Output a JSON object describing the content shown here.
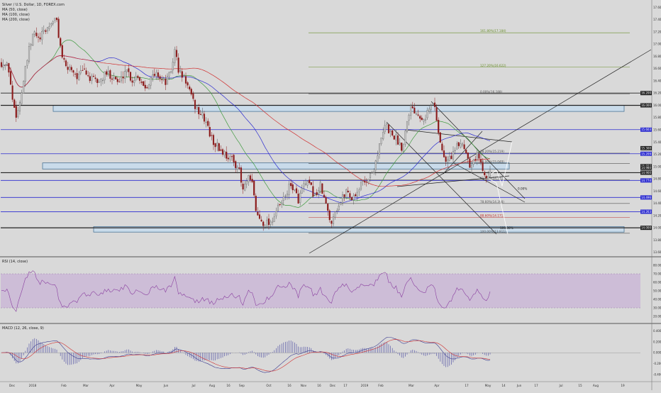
{
  "header": {
    "title": "Silver / U.S. Dollar, 1D, FOREX.com",
    "ma_labels": [
      "MA (50, close)",
      "MA (100, close)",
      "MA (200, close)"
    ]
  },
  "panes": {
    "rsi_label": "RSI (14, close)",
    "macd_label": "MACD (12, 26, close, 9)"
  },
  "colors": {
    "background": "#d9d9d9",
    "up_candle": "#c8c8c8",
    "down_candle": "#8b1a1a",
    "ma50": "#3f9a3f",
    "ma100": "#2b2bd0",
    "ma200": "#d03030",
    "rsi_band": "#c9b5d6",
    "rsi_line": "#8a3fa0",
    "macd_hist": "#5a5aa8",
    "macd_signal": "#d03030",
    "zone_fill": "#c8dcec",
    "zone_stroke": "#3d6b8f"
  },
  "chart_data": {
    "type": "candlestick",
    "title": "Silver / U.S. Dollar, 1D, FOREX.com",
    "x_tick_labels": [
      "Dec",
      "2018",
      "Feb",
      "Mar",
      "Apr",
      "May",
      "Jun",
      "Jul",
      "Aug",
      "16",
      "Sep",
      "Oct",
      "16",
      "Nov",
      "16",
      "Dec",
      "17",
      "2019",
      "Feb",
      "Mar",
      "Apr",
      "17",
      "May",
      "14",
      "Jun",
      "17",
      "Jul",
      "15",
      "Aug",
      "19"
    ],
    "y_ticks": [
      "17.600",
      "17.400",
      "17.200",
      "17.000",
      "16.800",
      "16.600",
      "16.400",
      "16.200",
      "16.000",
      "15.800",
      "15.600",
      "15.400",
      "15.200",
      "15.000",
      "14.800",
      "14.600",
      "14.400",
      "14.200",
      "14.000",
      "13.800",
      "13.600"
    ],
    "ylim": [
      13.55,
      17.65
    ],
    "price_badges": [
      {
        "label": "16.200",
        "value": 16.2,
        "color": "#222222"
      },
      {
        "label": "16.000",
        "value": 16.0,
        "color": "#222222"
      },
      {
        "label": "15.603",
        "value": 15.603,
        "color": "#2b2bd0"
      },
      {
        "label": "15.300",
        "value": 15.3,
        "color": "#222222"
      },
      {
        "label": "15.209",
        "value": 15.209,
        "color": "#2b2bd0"
      },
      {
        "label": "15.007",
        "value": 15.007,
        "color": "#222222"
      },
      {
        "label": "14.980",
        "value": 14.98,
        "color": "#222222"
      },
      {
        "label": "14.900",
        "value": 14.9,
        "color": "#222222"
      },
      {
        "label": "14.774",
        "value": 14.774,
        "color": "#2b2bd0"
      },
      {
        "label": "14.496",
        "value": 14.496,
        "color": "#2b2bd0"
      },
      {
        "label": "14.263",
        "value": 14.263,
        "color": "#2b2bd0"
      },
      {
        "label": "14.000",
        "value": 14.0,
        "color": "#222222"
      }
    ],
    "horizontal_lines": [
      {
        "value": 16.2,
        "color": "#222222",
        "width": 0.8
      },
      {
        "value": 16.0,
        "color": "#222222",
        "width": 1.2
      },
      {
        "value": 15.603,
        "color": "#2b2bd0",
        "width": 0.8
      },
      {
        "value": 15.209,
        "color": "#2b2bd0",
        "width": 0.8
      },
      {
        "value": 14.9,
        "color": "#222222",
        "width": 1.2
      },
      {
        "value": 14.774,
        "color": "#2b2bd0",
        "width": 0.8
      },
      {
        "value": 14.496,
        "color": "#2b2bd0",
        "width": 0.8
      },
      {
        "value": 14.263,
        "color": "#2b2bd0",
        "width": 0.8
      },
      {
        "value": 14.0,
        "color": "#222222",
        "width": 1.2
      }
    ],
    "fib_levels": [
      {
        "label": "161.80%(17.184)",
        "value": 17.184,
        "color": "#6a8f2a"
      },
      {
        "label": "127.20%(16.622)",
        "value": 16.622,
        "color": "#6a8f2a"
      },
      {
        "label": "0.00%(16.188)",
        "value": 16.188,
        "color": "#555555"
      },
      {
        "label": "38.20%(15.219)",
        "value": 15.219,
        "color": "#555555"
      },
      {
        "label": "50.00%(15.049)",
        "value": 15.049,
        "color": "#555555"
      },
      {
        "label": "61.80%(14.781)",
        "value": 14.781,
        "color": "#555555"
      },
      {
        "label": "78.60%(14.398)",
        "value": 14.398,
        "color": "#555555"
      },
      {
        "label": "88.60%(14.171)",
        "value": 14.171,
        "color": "#c03030"
      },
      {
        "label": "100.00%(13.911)",
        "value": 13.911,
        "color": "#555555"
      }
    ],
    "annotations": [
      "0.00%",
      "100.00%"
    ],
    "rsi": {
      "y_ticks": [
        "80.0000",
        "70.0000",
        "60.0000",
        "50.0000",
        "40.0000",
        "30.0000",
        "20.0000"
      ],
      "ylim": [
        15,
        85
      ],
      "band": [
        30,
        70
      ]
    },
    "macd": {
      "y_ticks": [
        "0.4000",
        "0.2000",
        "0.0000",
        "-0.2000",
        "-0.4000"
      ],
      "ylim": [
        -0.48,
        0.46
      ]
    }
  }
}
